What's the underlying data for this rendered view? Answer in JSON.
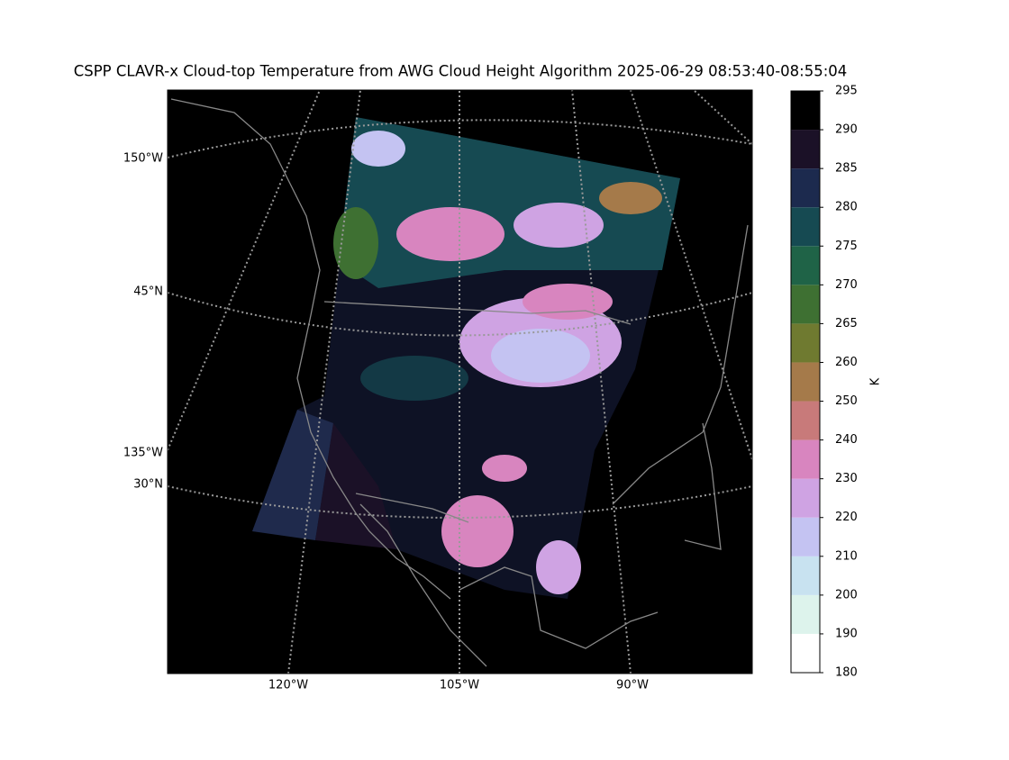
{
  "title": "CSPP CLAVR-x Cloud-top Temperature from AWG Cloud Height Algorithm 2025-06-29 08:53:40-08:55:04",
  "map": {
    "labels": [
      "150°W",
      "45°N",
      "135°W",
      "30°N",
      "120°W",
      "105°W",
      "90°W"
    ]
  },
  "colorbar": {
    "label": "K",
    "bounds": [
      180,
      190,
      200,
      210,
      220,
      230,
      240,
      250,
      260,
      265,
      270,
      275,
      280,
      285,
      290,
      295
    ],
    "colors": [
      "#ffffff",
      "#ddf3ec",
      "#c8e2f0",
      "#c4c3f2",
      "#cfa3e3",
      "#d885bf",
      "#c87a7a",
      "#a57a4a",
      "#6f7a30",
      "#3e7032",
      "#1f6347",
      "#164a52",
      "#1c2a4e",
      "#1b1127",
      "#000000"
    ]
  }
}
